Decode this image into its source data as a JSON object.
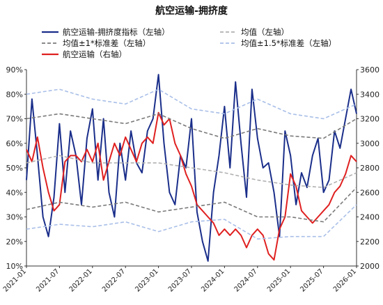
{
  "chart_data": {
    "type": "line",
    "title": "航空运输-拥挤度",
    "legend": {
      "placement": "top",
      "entries": [
        {
          "label": "航空运输-拥挤度指标（左轴）",
          "style": "solid",
          "color": "#1a2e8a"
        },
        {
          "label": "均值（左轴）",
          "style": "dashed",
          "color": "#b0b0b0"
        },
        {
          "label": "均值±1*标准差（左轴）",
          "style": "dashed",
          "color": "#7a7a7a"
        },
        {
          "label": "均值±1.5*标准差（左轴）",
          "style": "dashed",
          "color": "#a9bfe8"
        },
        {
          "label": "航空运输（右轴）",
          "style": "solid",
          "color": "#e02020"
        }
      ]
    },
    "x_ticks": [
      "2021-01",
      "2021-07",
      "2022-01",
      "2022-07",
      "2023-01",
      "2023-07",
      "2024-01",
      "2024-07",
      "2025-01",
      "2025-07",
      "2026-01"
    ],
    "x_start": "2021-01",
    "x_end": "2026-01",
    "y_left": {
      "min": 10,
      "max": 90,
      "ticks": [
        "10%",
        "20%",
        "30%",
        "40%",
        "50%",
        "60%",
        "70%",
        "80%",
        "90%"
      ]
    },
    "y_right": {
      "min": 2000,
      "max": 3600,
      "ticks": [
        "2000",
        "2200",
        "2400",
        "2600",
        "2800",
        "3000",
        "3200",
        "3400",
        "3600"
      ]
    },
    "grid": false,
    "series": [
      {
        "name": "航空运输-拥挤度指标（左轴）",
        "axis": "left",
        "color": "#1a2e8a",
        "x": [
          "2021-01",
          "2021-02",
          "2021-03",
          "2021-04",
          "2021-05",
          "2021-06",
          "2021-07",
          "2021-08",
          "2021-09",
          "2021-10",
          "2021-11",
          "2021-12",
          "2022-01",
          "2022-02",
          "2022-03",
          "2022-04",
          "2022-05",
          "2022-06",
          "2022-07",
          "2022-08",
          "2022-09",
          "2022-10",
          "2022-11",
          "2022-12",
          "2023-01",
          "2023-02",
          "2023-03",
          "2023-04",
          "2023-05",
          "2023-06",
          "2023-07",
          "2023-08",
          "2023-09",
          "2023-10",
          "2023-11",
          "2023-12",
          "2024-01",
          "2024-02",
          "2024-03",
          "2024-04",
          "2024-05",
          "2024-06",
          "2024-07",
          "2024-08",
          "2024-09",
          "2024-10",
          "2024-11",
          "2024-12",
          "2025-01",
          "2025-02",
          "2025-03",
          "2025-04",
          "2025-05",
          "2025-06",
          "2025-07",
          "2025-08",
          "2025-09",
          "2025-10",
          "2025-11",
          "2025-12",
          "2026-01"
        ],
        "values": [
          45,
          78,
          55,
          30,
          22,
          38,
          68,
          40,
          65,
          55,
          35,
          62,
          74,
          45,
          70,
          40,
          30,
          60,
          45,
          65,
          52,
          48,
          65,
          70,
          88,
          60,
          40,
          35,
          55,
          50,
          70,
          32,
          20,
          12,
          40,
          55,
          75,
          50,
          85,
          60,
          38,
          82,
          62,
          50,
          52,
          40,
          22,
          65,
          55,
          35,
          48,
          42,
          55,
          62,
          40,
          45,
          65,
          58,
          70,
          82,
          72
        ]
      },
      {
        "name": "航空运输（右轴）",
        "axis": "right",
        "color": "#e02020",
        "x": [
          "2021-01",
          "2021-02",
          "2021-03",
          "2021-04",
          "2021-05",
          "2021-06",
          "2021-07",
          "2021-08",
          "2021-09",
          "2021-10",
          "2021-11",
          "2021-12",
          "2022-01",
          "2022-02",
          "2022-03",
          "2022-04",
          "2022-05",
          "2022-06",
          "2022-07",
          "2022-08",
          "2022-09",
          "2022-10",
          "2022-11",
          "2022-12",
          "2023-01",
          "2023-02",
          "2023-03",
          "2023-04",
          "2023-05",
          "2023-06",
          "2023-07",
          "2023-08",
          "2023-09",
          "2023-10",
          "2023-11",
          "2023-12",
          "2024-01",
          "2024-02",
          "2024-03",
          "2024-04",
          "2024-05",
          "2024-06",
          "2024-07",
          "2024-08",
          "2024-09",
          "2024-10",
          "2024-11",
          "2024-12",
          "2025-01",
          "2025-02",
          "2025-03",
          "2025-04",
          "2025-05",
          "2025-06",
          "2025-07",
          "2025-08",
          "2025-09",
          "2025-10",
          "2025-11",
          "2025-12",
          "2026-01"
        ],
        "values": [
          2950,
          2850,
          3050,
          2800,
          2600,
          2450,
          2500,
          2850,
          2900,
          2900,
          2850,
          2950,
          2850,
          3000,
          2700,
          2850,
          3000,
          2900,
          3050,
          2950,
          2850,
          3000,
          3050,
          3000,
          3250,
          3150,
          3200,
          3000,
          2900,
          2750,
          2650,
          2500,
          2450,
          2400,
          2350,
          2250,
          2300,
          2250,
          2300,
          2250,
          2150,
          2250,
          2300,
          2250,
          2100,
          2050,
          2300,
          2400,
          2750,
          2650,
          2450,
          2400,
          2350,
          2400,
          2450,
          2500,
          2600,
          2650,
          2750,
          2900,
          2850
        ]
      },
      {
        "name": "均值（左轴）",
        "axis": "left",
        "color": "#b0b0b0",
        "x": [
          "2021-01",
          "2021-07",
          "2022-01",
          "2022-07",
          "2023-01",
          "2023-07",
          "2024-01",
          "2024-07",
          "2025-01",
          "2025-07",
          "2026-01"
        ],
        "values": [
          52,
          55,
          52,
          52,
          52,
          50,
          48,
          45,
          43,
          42,
          48
        ]
      },
      {
        "name": "均值±1*标准差（左轴）",
        "axis": "left",
        "color": "#7a7a7a",
        "x": [
          "2021-01",
          "2021-07",
          "2022-01",
          "2022-07",
          "2023-01",
          "2023-07",
          "2024-01",
          "2024-07",
          "2025-01",
          "2025-07",
          "2026-01"
        ],
        "values": [
          70,
          72,
          70,
          68,
          72,
          66,
          62,
          66,
          63,
          62,
          70
        ]
      },
      {
        "name": "均值±1*标准差（左轴）",
        "axis": "left",
        "color": "#7a7a7a",
        "x": [
          "2021-01",
          "2021-07",
          "2022-01",
          "2022-07",
          "2023-01",
          "2023-07",
          "2024-01",
          "2024-07",
          "2025-01",
          "2025-07",
          "2026-01"
        ],
        "values": [
          33,
          36,
          34,
          36,
          32,
          34,
          36,
          30,
          30,
          28,
          42
        ]
      },
      {
        "name": "均值±1.5*标准差（左轴）",
        "axis": "left",
        "color": "#a9bfe8",
        "x": [
          "2021-01",
          "2021-07",
          "2022-01",
          "2022-07",
          "2023-01",
          "2023-07",
          "2024-01",
          "2024-07",
          "2025-01",
          "2025-07",
          "2026-01"
        ],
        "values": [
          80,
          82,
          78,
          76,
          82,
          74,
          72,
          78,
          72,
          70,
          76
        ]
      },
      {
        "name": "均值±1.5*标准差（左轴）",
        "axis": "left",
        "color": "#a9bfe8",
        "x": [
          "2021-01",
          "2021-07",
          "2022-01",
          "2022-07",
          "2023-01",
          "2023-07",
          "2024-01",
          "2024-07",
          "2025-01",
          "2025-07",
          "2026-01"
        ],
        "values": [
          25,
          27,
          26,
          28,
          24,
          28,
          29,
          21,
          22,
          22,
          35
        ]
      }
    ]
  }
}
